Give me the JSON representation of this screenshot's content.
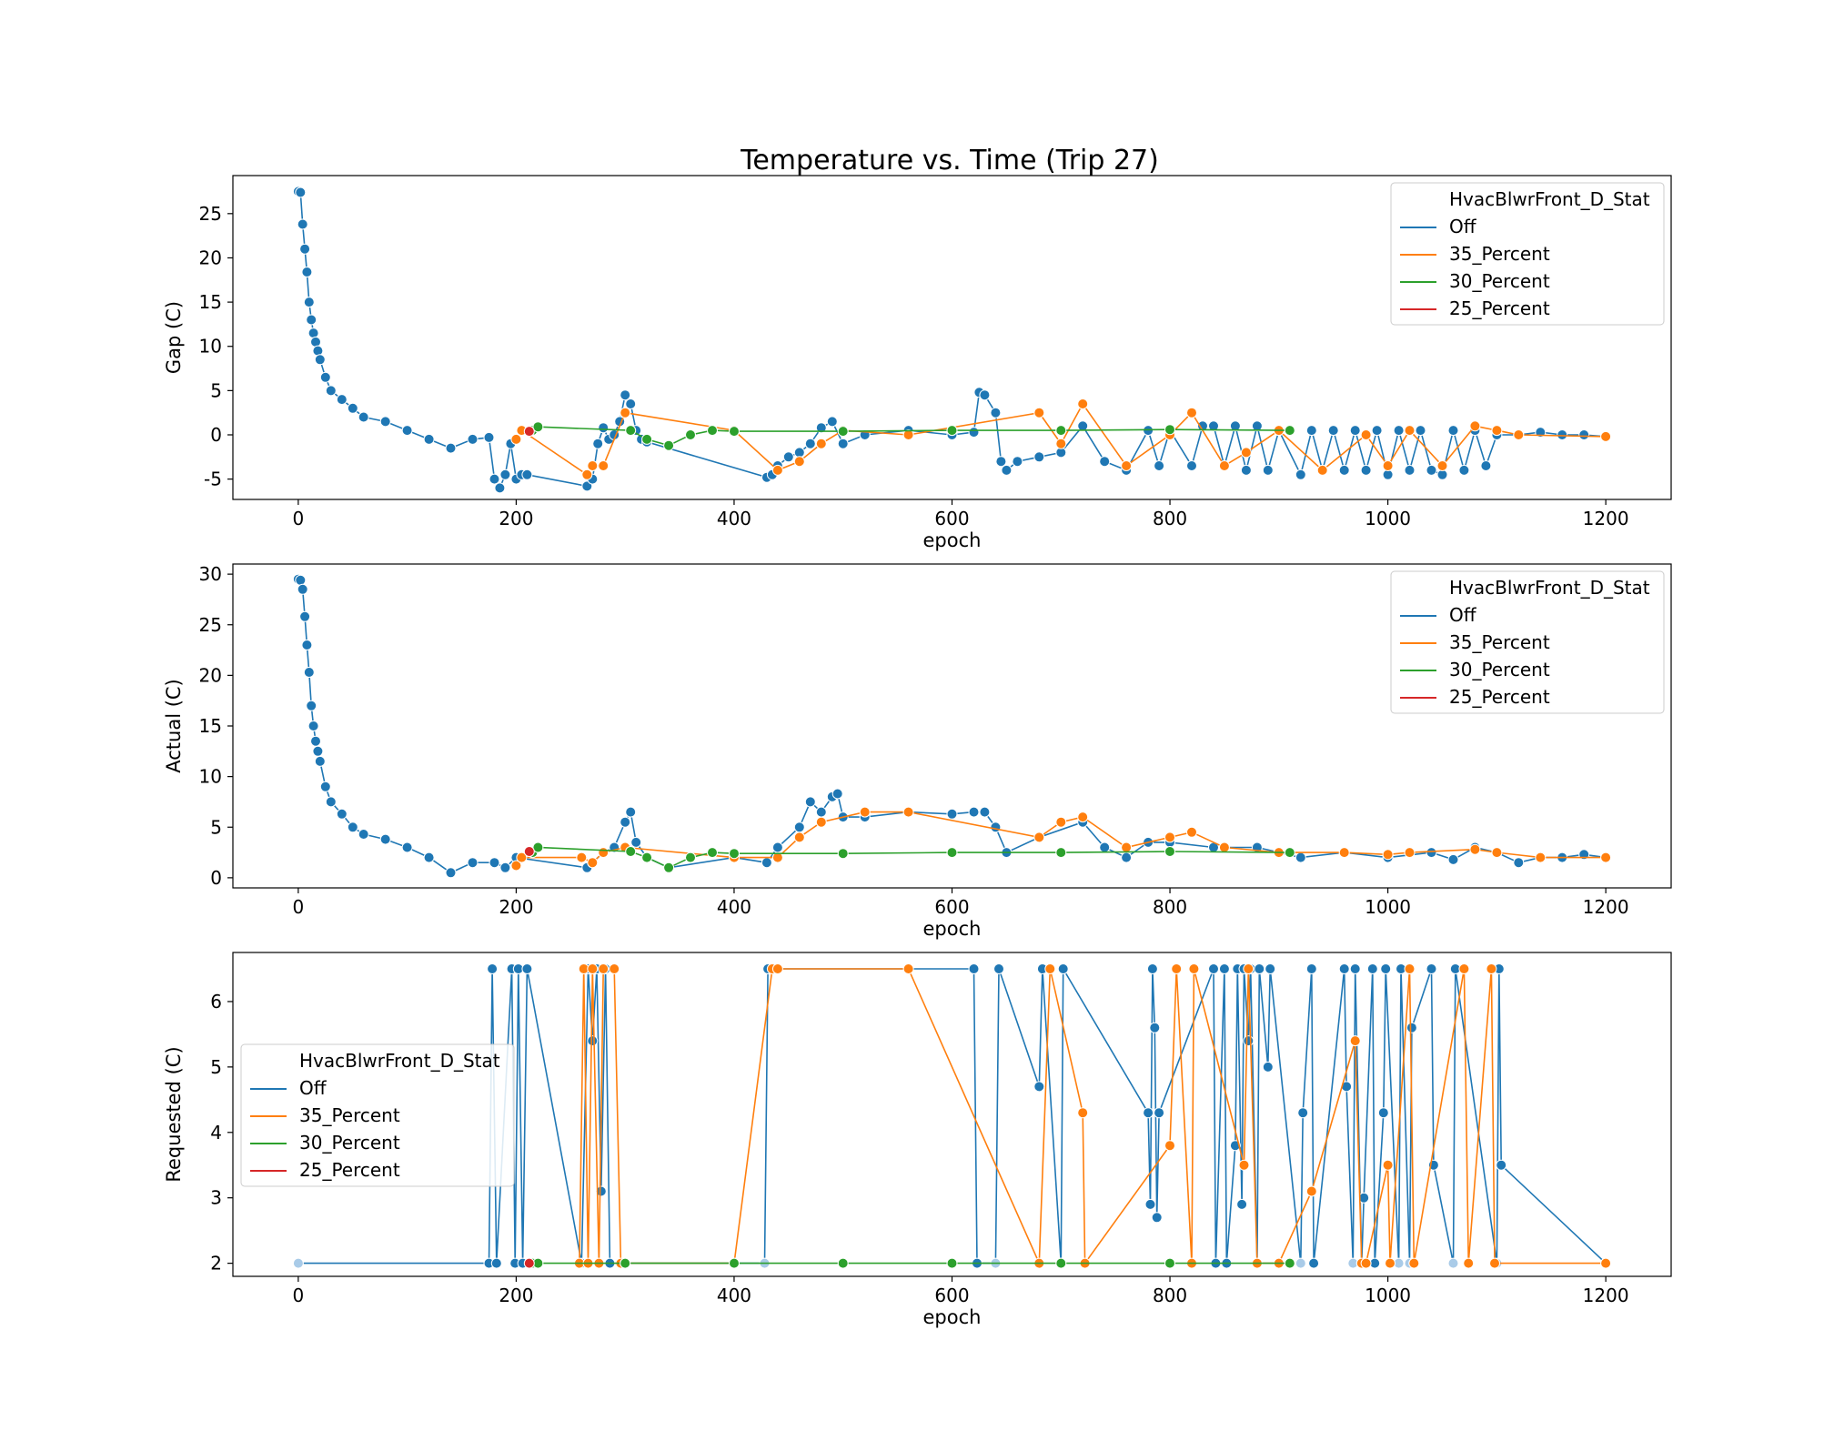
{
  "title": "Temperature vs. Time (Trip 27)",
  "colors": {
    "Off": "#1f77b4",
    "35_Percent": "#ff7f0e",
    "30_Percent": "#2ca02c",
    "25_Percent": "#d62728",
    "light_marker": "#a9cbe8"
  },
  "legend": {
    "title": "HvacBlwrFront_D_Stat",
    "entries": [
      "Off",
      "35_Percent",
      "30_Percent",
      "25_Percent"
    ]
  },
  "chart_data": [
    {
      "type": "line",
      "xlabel": "epoch",
      "ylabel": "Gap (C)",
      "xlim": [
        -60,
        1260
      ],
      "ylim": [
        -7.3,
        29.3
      ],
      "xticks": [
        0,
        200,
        400,
        600,
        800,
        1000,
        1200
      ],
      "yticks": [
        -5,
        0,
        5,
        10,
        15,
        20,
        25
      ],
      "legend_loc": "upper right",
      "series": [
        {
          "name": "Off",
          "x": [
            0,
            2,
            4,
            6,
            8,
            10,
            12,
            14,
            16,
            18,
            20,
            25,
            30,
            40,
            50,
            60,
            80,
            100,
            120,
            140,
            160,
            175,
            180,
            185,
            190,
            195,
            200,
            205,
            210,
            265,
            270,
            275,
            280,
            285,
            290,
            295,
            300,
            305,
            310,
            315,
            320,
            430,
            435,
            440,
            450,
            460,
            470,
            480,
            490,
            500,
            520,
            560,
            600,
            620,
            625,
            630,
            640,
            645,
            650,
            660,
            680,
            700,
            720,
            740,
            760,
            780,
            790,
            800,
            820,
            830,
            840,
            850,
            860,
            870,
            880,
            890,
            900,
            920,
            930,
            940,
            950,
            960,
            970,
            980,
            990,
            1000,
            1010,
            1020,
            1030,
            1040,
            1050,
            1060,
            1070,
            1080,
            1090,
            1100,
            1120,
            1140,
            1160,
            1180,
            1200
          ],
          "values": [
            27.5,
            27.4,
            23.8,
            21,
            18.4,
            15,
            13,
            11.5,
            10.5,
            9.5,
            8.5,
            6.5,
            5,
            4,
            3,
            2,
            1.5,
            0.5,
            -0.5,
            -1.5,
            -0.5,
            -0.3,
            -5,
            -6,
            -4.5,
            -1,
            -5,
            -4.5,
            -4.5,
            -5.8,
            -5,
            -1,
            0.8,
            -0.5,
            0,
            1.5,
            4.5,
            3.5,
            0.5,
            -0.5,
            -0.8,
            -4.8,
            -4.5,
            -3.5,
            -2.5,
            -2,
            -1,
            0.8,
            1.5,
            -1,
            0,
            0.5,
            0,
            0.3,
            4.8,
            4.5,
            2.5,
            -3,
            -4,
            -3,
            -2.5,
            -2,
            1,
            -3,
            -4,
            0.5,
            -3.5,
            0.5,
            -3.5,
            1,
            1,
            -3.5,
            1,
            -4,
            1,
            -4,
            0.5,
            -4.5,
            0.5,
            -4,
            0.5,
            -4,
            0.5,
            -4,
            0.5,
            -4.5,
            0.5,
            -4,
            0.5,
            -4,
            -4.5,
            0.5,
            -4,
            0.5,
            -3.5,
            0,
            0,
            0.3,
            0,
            0,
            -0.2
          ]
        },
        {
          "name": "35_Percent",
          "x": [
            200,
            205,
            265,
            270,
            280,
            300,
            400,
            440,
            460,
            480,
            500,
            560,
            680,
            700,
            720,
            760,
            800,
            820,
            850,
            870,
            900,
            940,
            980,
            1000,
            1020,
            1050,
            1080,
            1100,
            1120,
            1200
          ],
          "values": [
            -0.5,
            0.5,
            -4.5,
            -3.5,
            -3.5,
            2.5,
            0.5,
            -4,
            -3,
            -1,
            0.5,
            0,
            2.5,
            -1,
            3.5,
            -3.5,
            0,
            2.5,
            -3.5,
            -2,
            0.5,
            -4,
            0,
            -3.5,
            0.5,
            -3.5,
            1,
            0.5,
            0,
            -0.2
          ]
        },
        {
          "name": "30_Percent",
          "x": [
            215,
            220,
            305,
            320,
            340,
            360,
            380,
            400,
            500,
            600,
            700,
            800,
            910
          ],
          "values": [
            0.5,
            0.9,
            0.5,
            -0.5,
            -1.2,
            0,
            0.5,
            0.4,
            0.4,
            0.5,
            0.5,
            0.6,
            0.5
          ]
        },
        {
          "name": "25_Percent",
          "x": [
            212
          ],
          "values": [
            0.4
          ]
        }
      ]
    },
    {
      "type": "line",
      "xlabel": "epoch",
      "ylabel": "Actual (C)",
      "xlim": [
        -60,
        1260
      ],
      "ylim": [
        -1,
        31
      ],
      "xticks": [
        0,
        200,
        400,
        600,
        800,
        1000,
        1200
      ],
      "yticks": [
        0,
        5,
        10,
        15,
        20,
        25,
        30
      ],
      "legend_loc": "upper right",
      "series": [
        {
          "name": "Off",
          "x": [
            0,
            2,
            4,
            6,
            8,
            10,
            12,
            14,
            16,
            18,
            20,
            25,
            30,
            40,
            50,
            60,
            80,
            100,
            120,
            140,
            160,
            180,
            190,
            200,
            265,
            270,
            280,
            290,
            300,
            305,
            310,
            320,
            340,
            400,
            430,
            440,
            460,
            470,
            480,
            490,
            495,
            500,
            520,
            560,
            600,
            620,
            630,
            640,
            650,
            680,
            720,
            740,
            760,
            780,
            800,
            840,
            880,
            920,
            960,
            1000,
            1040,
            1060,
            1080,
            1100,
            1120,
            1140,
            1160,
            1180,
            1200
          ],
          "values": [
            29.5,
            29.4,
            28.5,
            25.8,
            23,
            20.3,
            17,
            15,
            13.5,
            12.5,
            11.5,
            9,
            7.5,
            6.3,
            5,
            4.3,
            3.8,
            3,
            2,
            0.5,
            1.5,
            1.5,
            1,
            2,
            1,
            1.5,
            2.5,
            3,
            5.5,
            6.5,
            3.5,
            2,
            1,
            2,
            1.5,
            3,
            5,
            7.5,
            6.5,
            8,
            8.3,
            6,
            6,
            6.5,
            6.3,
            6.5,
            6.5,
            5,
            2.5,
            4,
            5.5,
            3,
            2,
            3.5,
            3.5,
            3,
            3,
            2,
            2.5,
            2,
            2.5,
            1.8,
            3,
            2.5,
            1.5,
            2,
            2,
            2.3,
            2
          ]
        },
        {
          "name": "35_Percent",
          "x": [
            200,
            205,
            260,
            270,
            280,
            300,
            400,
            440,
            460,
            480,
            520,
            560,
            680,
            700,
            720,
            760,
            800,
            820,
            850,
            900,
            960,
            1000,
            1020,
            1080,
            1100,
            1140,
            1200
          ],
          "values": [
            1.2,
            2,
            2,
            1.5,
            2.5,
            3,
            2,
            2,
            4,
            5.5,
            6.5,
            6.5,
            4,
            5.5,
            6,
            3,
            4,
            4.5,
            3,
            2.5,
            2.5,
            2.3,
            2.5,
            2.8,
            2.5,
            2,
            2
          ]
        },
        {
          "name": "30_Percent",
          "x": [
            215,
            220,
            305,
            320,
            340,
            360,
            380,
            400,
            500,
            600,
            700,
            800,
            910
          ],
          "values": [
            2.5,
            3,
            2.6,
            2,
            1,
            2,
            2.5,
            2.4,
            2.4,
            2.5,
            2.5,
            2.6,
            2.5
          ]
        },
        {
          "name": "25_Percent",
          "x": [
            212
          ],
          "values": [
            2.6
          ]
        }
      ]
    },
    {
      "type": "line",
      "xlabel": "epoch",
      "ylabel": "Requested (C)",
      "xlim": [
        -60,
        1260
      ],
      "ylim": [
        1.8,
        6.75
      ],
      "xticks": [
        0,
        200,
        400,
        600,
        800,
        1000,
        1200
      ],
      "yticks": [
        2,
        3,
        4,
        5,
        6
      ],
      "legend_loc": "center left",
      "series": [
        {
          "name": "Off",
          "x": [
            0,
            175,
            178,
            182,
            196,
            199,
            202,
            206,
            210,
            260,
            266,
            270,
            274,
            278,
            282,
            286,
            428,
            431,
            620,
            623,
            640,
            643,
            680,
            683,
            700,
            702,
            780,
            782,
            784,
            786,
            788,
            790,
            840,
            842,
            850,
            852,
            860,
            862,
            866,
            868,
            872,
            874,
            880,
            882,
            890,
            892,
            920,
            922,
            930,
            932,
            960,
            962,
            968,
            970,
            976,
            978,
            986,
            988,
            996,
            998,
            1010,
            1012,
            1020,
            1022,
            1040,
            1042,
            1060,
            1062,
            1100,
            1102,
            1104,
            1200
          ],
          "values": [
            2,
            2,
            6.5,
            2,
            6.5,
            2,
            6.5,
            2,
            6.5,
            2,
            6.5,
            5.4,
            6.5,
            3.1,
            6.5,
            2,
            2,
            6.5,
            6.5,
            2,
            2,
            6.5,
            4.7,
            6.5,
            2,
            6.5,
            4.3,
            2.9,
            6.5,
            5.6,
            2.7,
            4.3,
            6.5,
            2,
            6.5,
            2,
            3.8,
            6.5,
            2.9,
            6.5,
            5.4,
            6.5,
            2,
            6.5,
            5,
            6.5,
            2,
            4.3,
            6.5,
            2,
            6.5,
            4.7,
            2,
            6.5,
            2,
            3,
            6.5,
            2,
            4.3,
            6.5,
            2,
            6.5,
            2,
            5.6,
            6.5,
            3.5,
            2,
            6.5,
            2,
            6.5,
            3.5,
            2
          ]
        },
        {
          "name": "35_Percent",
          "x": [
            258,
            262,
            266,
            270,
            276,
            280,
            290,
            296,
            300,
            400,
            435,
            440,
            560,
            680,
            690,
            720,
            722,
            800,
            806,
            820,
            822,
            868,
            872,
            880,
            900,
            930,
            970,
            976,
            980,
            1000,
            1002,
            1020,
            1024,
            1070,
            1074,
            1095,
            1098,
            1200
          ],
          "values": [
            2,
            6.5,
            2,
            6.5,
            2,
            6.5,
            6.5,
            2,
            2,
            2,
            6.5,
            6.5,
            6.5,
            2,
            6.5,
            4.3,
            2,
            3.8,
            6.5,
            2,
            6.5,
            3.5,
            6.5,
            2,
            2,
            3.1,
            5.4,
            2,
            2,
            3.5,
            2,
            6.5,
            2,
            6.5,
            2,
            6.5,
            2,
            2
          ]
        },
        {
          "name": "30_Percent",
          "x": [
            215,
            220,
            300,
            400,
            500,
            600,
            700,
            800,
            910
          ],
          "values": [
            2,
            2,
            2,
            2,
            2,
            2,
            2,
            2,
            2
          ]
        },
        {
          "name": "25_Percent",
          "x": [
            212
          ],
          "values": [
            2
          ]
        }
      ]
    }
  ]
}
